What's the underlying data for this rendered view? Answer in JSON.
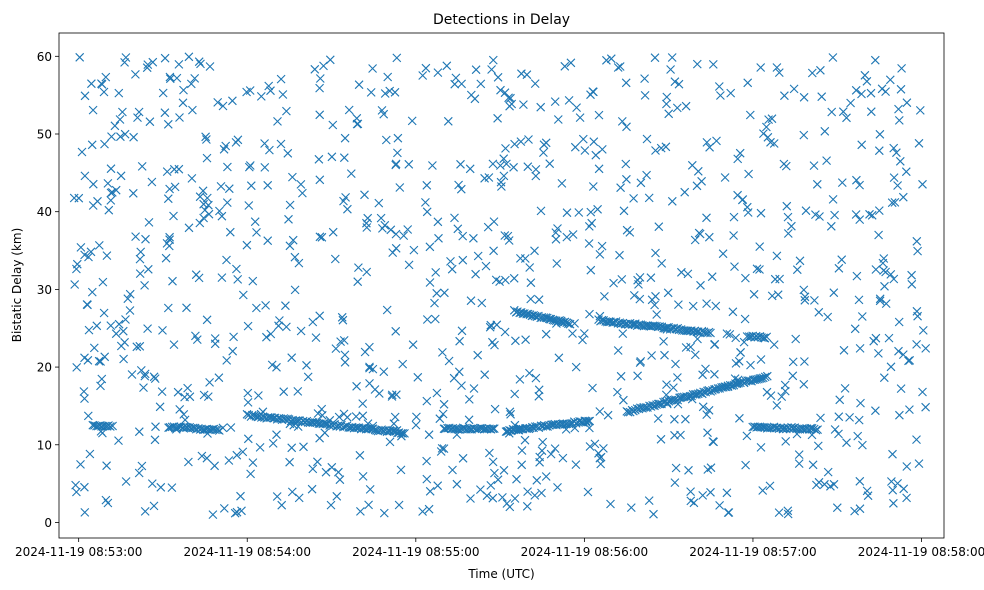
{
  "chart_data": {
    "type": "scatter",
    "title": "Detections in Delay",
    "xlabel": "Time (UTC)",
    "ylabel": "Bistatic Delay (km)",
    "marker": "x",
    "color": "#1f77b4",
    "grid": false,
    "legend": "none",
    "x_axis": {
      "kind": "time",
      "start": "2024-11-19 08:52:53",
      "end": "2024-11-19 08:58:08",
      "ticks": [
        "2024-11-19 08:53:00",
        "2024-11-19 08:54:00",
        "2024-11-19 08:55:00",
        "2024-11-19 08:56:00",
        "2024-11-19 08:57:00",
        "2024-11-19 08:58:00"
      ]
    },
    "y_axis": {
      "range": [
        -2,
        63
      ],
      "ticks": [
        0,
        10,
        20,
        30,
        40,
        50,
        60
      ]
    },
    "tracks": [
      {
        "from": [
          "2024-11-19 08:53:05",
          12.4
        ],
        "to": [
          "2024-11-19 08:53:12",
          12.4
        ]
      },
      {
        "from": [
          "2024-11-19 08:53:32",
          12.3
        ],
        "to": [
          "2024-11-19 08:53:50",
          11.9
        ]
      },
      {
        "from": [
          "2024-11-19 08:54:00",
          13.8
        ],
        "to": [
          "2024-11-19 08:54:56",
          11.5
        ]
      },
      {
        "from": [
          "2024-11-19 08:55:10",
          12.1
        ],
        "to": [
          "2024-11-19 08:55:28",
          12.0
        ]
      },
      {
        "from": [
          "2024-11-19 08:55:32",
          11.8
        ],
        "to": [
          "2024-11-19 08:56:02",
          13.1
        ]
      },
      {
        "from": [
          "2024-11-19 08:56:15",
          14.2
        ],
        "to": [
          "2024-11-19 08:57:05",
          18.8
        ]
      },
      {
        "from": [
          "2024-11-19 08:57:00",
          12.3
        ],
        "to": [
          "2024-11-19 08:57:23",
          12.0
        ]
      },
      {
        "from": [
          "2024-11-19 08:55:35",
          27.2
        ],
        "to": [
          "2024-11-19 08:55:55",
          25.6
        ]
      },
      {
        "from": [
          "2024-11-19 08:56:05",
          26.0
        ],
        "to": [
          "2024-11-19 08:56:45",
          24.4
        ]
      },
      {
        "from": [
          "2024-11-19 08:56:58",
          24.0
        ],
        "to": [
          "2024-11-19 08:57:05",
          23.8
        ]
      }
    ],
    "scattered": {
      "x_range": [
        "2024-11-19 08:52:58",
        "2024-11-19 08:58:02"
      ],
      "y_range": [
        1,
        60
      ],
      "approx_count": 1050
    }
  }
}
